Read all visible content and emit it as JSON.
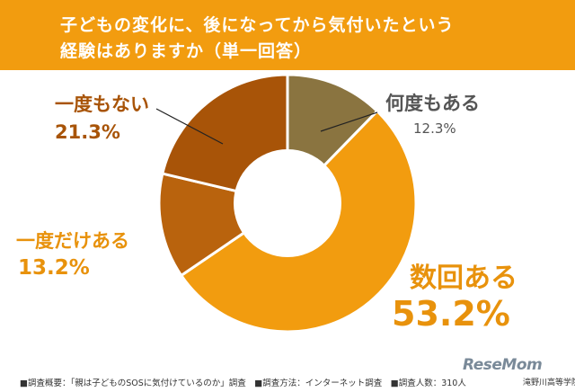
{
  "header": {
    "title_line1": "子どもの変化に、後になってから気付いたという",
    "title_line2": "経験はありますか（単一回答）"
  },
  "chart_data": {
    "type": "pie",
    "title": "子どもの変化に、後になってから気付いたという経験はありますか（単一回答）",
    "unit": "%",
    "slices": [
      {
        "label": "何度もある",
        "value": 12.3,
        "value_text": "12.3%",
        "color": "#8a7440"
      },
      {
        "label": "数回ある",
        "value": 53.2,
        "value_text": "53.2%",
        "color": "#f29c0f"
      },
      {
        "label": "一度だけある",
        "value": 13.2,
        "value_text": "13.2%",
        "color": "#b9630d"
      },
      {
        "label": "一度もない",
        "value": 21.3,
        "value_text": "21.3%",
        "color": "#a85408"
      }
    ]
  },
  "label_colors": {
    "nanido": "#555555",
    "suukai": "#e8920c",
    "ichido_dake": "#e8920c",
    "ichido_mo": "#a85408"
  },
  "footer": {
    "note": "■調査概要：「親は子どものSOSに気付けているのか」調査　■調査方法：インターネット調査　■調査人数：310人",
    "credit": "滝野川高等学院",
    "brand": "ReseMom"
  }
}
